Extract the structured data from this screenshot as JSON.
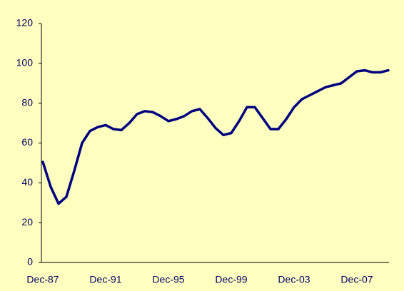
{
  "chart_data": {
    "type": "line",
    "categories": [
      "Dec-87",
      null,
      null,
      null,
      null,
      null,
      null,
      null,
      "Dec-91",
      null,
      null,
      null,
      null,
      null,
      null,
      null,
      "Dec-95",
      null,
      null,
      null,
      null,
      null,
      null,
      null,
      "Dec-99",
      null,
      null,
      null,
      null,
      null,
      null,
      null,
      "Dec-03",
      null,
      null,
      null,
      null,
      null,
      null,
      null,
      "Dec-07",
      null,
      null,
      null,
      null
    ],
    "values": [
      50.5,
      38,
      29.5,
      33,
      46,
      60,
      66,
      68,
      69,
      67,
      66.5,
      70,
      74.5,
      76,
      75.5,
      73.5,
      71,
      72,
      73.5,
      76,
      77,
      72.5,
      67.5,
      64,
      65,
      71,
      78,
      78,
      72.5,
      67,
      67,
      72,
      78,
      82,
      84,
      86,
      88,
      89,
      90,
      93,
      96,
      96.5,
      95.5,
      95.5,
      96.5
    ],
    "color": "#000080",
    "ylim": [
      0,
      120
    ],
    "yticks": [
      0,
      20,
      40,
      60,
      80,
      100,
      120
    ],
    "grid": false
  }
}
